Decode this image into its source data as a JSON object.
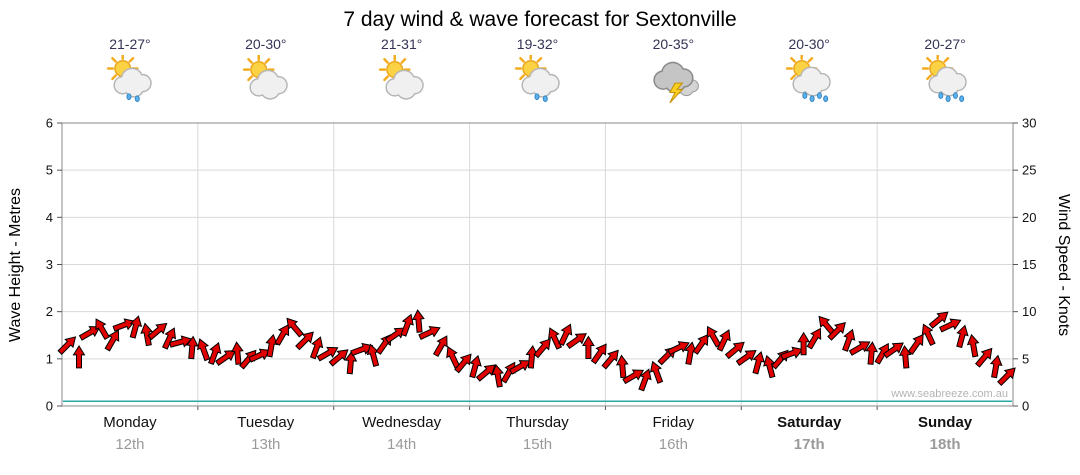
{
  "title": "7 day wind & wave forecast for Sextonville",
  "watermark": "www.seabreeze.com.au",
  "days": [
    {
      "name": "Monday",
      "date": "12th",
      "temp_range": "21-27°",
      "icon": "sun-cloud-rain",
      "weekend": false
    },
    {
      "name": "Tuesday",
      "date": "13th",
      "temp_range": "20-30°",
      "icon": "sun-cloud",
      "weekend": false
    },
    {
      "name": "Wednesday",
      "date": "14th",
      "temp_range": "21-31°",
      "icon": "sun-cloud",
      "weekend": false
    },
    {
      "name": "Thursday",
      "date": "15th",
      "temp_range": "19-32°",
      "icon": "sun-cloud-rain",
      "weekend": false
    },
    {
      "name": "Friday",
      "date": "16th",
      "temp_range": "20-35°",
      "icon": "thunderstorm",
      "weekend": false
    },
    {
      "name": "Saturday",
      "date": "17th",
      "temp_range": "20-30°",
      "icon": "sun-cloud-showers",
      "weekend": true
    },
    {
      "name": "Sunday",
      "date": "18th",
      "temp_range": "20-27°",
      "icon": "sun-cloud-showers",
      "weekend": true
    }
  ],
  "chart_data": {
    "type": "line",
    "title": "7 day wind & wave forecast for Sextonville",
    "categories": [
      "Monday 12th",
      "Tuesday 13th",
      "Wednesday 14th",
      "Thursday 15th",
      "Friday 16th",
      "Saturday 17th",
      "Sunday 18th"
    ],
    "points_per_day": 12,
    "left_axis": {
      "label": "Wave Height - Metres",
      "min": 0,
      "max": 6,
      "ticks": [
        0,
        1,
        2,
        3,
        4,
        5,
        6
      ]
    },
    "right_axis": {
      "label": "Wind Speed - Knots",
      "min": 0,
      "max": 30,
      "ticks": [
        0,
        5,
        10,
        15,
        20,
        25,
        30
      ]
    },
    "grid": true,
    "series": [
      {
        "name": "Wind speed & direction",
        "unit": "knots",
        "axis": "right",
        "style": "red-direction-arrows",
        "values": [
          6.5,
          5.2,
          7.8,
          8.2,
          7.0,
          8.6,
          8.4,
          7.6,
          8.0,
          7.2,
          6.8,
          6.2,
          6.0,
          5.6,
          5.2,
          5.6,
          5.0,
          5.4,
          6.4,
          7.6,
          8.4,
          7.0,
          6.2,
          5.6,
          5.2,
          4.6,
          6.0,
          5.4,
          6.6,
          7.6,
          8.6,
          9.0,
          7.8,
          6.4,
          5.2,
          4.6,
          4.2,
          3.6,
          3.2,
          3.6,
          4.2,
          5.2,
          6.2,
          7.2,
          7.6,
          7.0,
          6.2,
          5.6,
          5.0,
          4.2,
          3.2,
          2.8,
          3.6,
          5.4,
          6.2,
          5.6,
          6.6,
          7.4,
          7.0,
          6.0,
          5.2,
          4.6,
          4.2,
          5.0,
          5.6,
          6.6,
          7.2,
          8.6,
          8.0,
          7.0,
          6.2,
          5.6,
          5.6,
          6.0,
          5.2,
          6.6,
          7.6,
          9.2,
          8.6,
          7.4,
          6.4,
          5.2,
          4.2,
          3.2
        ],
        "directions": [
          45,
          90,
          30,
          120,
          60,
          20,
          75,
          100,
          40,
          65,
          15,
          85,
          110,
          70,
          35,
          95,
          50,
          25,
          80,
          60,
          130,
          45,
          70,
          30,
          40,
          85,
          20,
          105,
          55,
          35,
          70,
          95,
          25,
          60,
          115,
          50,
          75,
          40,
          100,
          60,
          30,
          85,
          50,
          115,
          65,
          35,
          90,
          55,
          50,
          95,
          30,
          70,
          110,
          45,
          25,
          80,
          55,
          120,
          65,
          40,
          35,
          75,
          105,
          50,
          20,
          90,
          60,
          130,
          45,
          70,
          30,
          85,
          60,
          35,
          95,
          55,
          115,
          40,
          25,
          75,
          100,
          50,
          80,
          45
        ]
      },
      {
        "name": "Wave height",
        "unit": "metres",
        "axis": "left",
        "style": "flat-line",
        "value": 0.1
      }
    ],
    "colors": {
      "arrow_fill": "#e00000",
      "arrow_stroke": "#000000",
      "wave_line": "#2aa7a7",
      "grid": "#d9d9d9",
      "frame": "#888888"
    }
  }
}
